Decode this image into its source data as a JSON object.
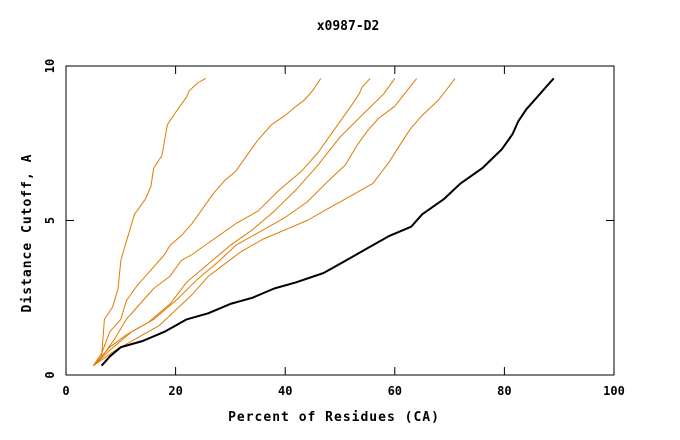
{
  "chart_data": {
    "type": "line",
    "title": "x0987-D2",
    "xlabel": "Percent of Residues (CA)",
    "ylabel": "Distance Cutoff, A",
    "xlim": [
      0,
      100
    ],
    "ylim": [
      0,
      10
    ],
    "xticks": [
      0,
      20,
      40,
      60,
      80,
      100
    ],
    "yticks": [
      0,
      5,
      10
    ],
    "grid": false,
    "legend": "none",
    "colors": {
      "highlight": "#000000",
      "others": "#e07b00",
      "axes": "#000000"
    },
    "series": [
      {
        "highlight": false,
        "x": [
          5.0,
          6.5,
          7.0,
          8.5,
          9.5,
          10.0,
          10.8,
          11.5,
          12.5,
          14.5,
          15.5,
          16.0,
          17.5,
          18.0,
          18.5,
          20.0,
          22.0,
          22.5,
          24.0,
          25.5
        ],
        "y": [
          0.3,
          0.6,
          1.8,
          2.2,
          2.8,
          3.7,
          4.2,
          4.6,
          5.2,
          5.7,
          6.1,
          6.7,
          7.1,
          7.6,
          8.1,
          8.5,
          9.0,
          9.2,
          9.45,
          9.6
        ]
      },
      {
        "highlight": false,
        "x": [
          5.0,
          6.5,
          8.0,
          10.0,
          11.0,
          13.0,
          16.0,
          18.0,
          19.0,
          21.0,
          23.0,
          25.0,
          27.0,
          29.0,
          31.0,
          33.0,
          35.0,
          36.0,
          37.5,
          40.0,
          42.0,
          43.5,
          45.0,
          46.5
        ],
        "y": [
          0.3,
          0.7,
          1.4,
          1.8,
          2.4,
          2.9,
          3.5,
          3.9,
          4.2,
          4.5,
          4.9,
          5.4,
          5.9,
          6.3,
          6.6,
          7.1,
          7.6,
          7.8,
          8.1,
          8.4,
          8.7,
          8.9,
          9.2,
          9.6
        ]
      },
      {
        "highlight": false,
        "x": [
          5.0,
          7.0,
          9.0,
          11.0,
          13.0,
          16.0,
          19.0,
          21.0,
          23.0,
          27.0,
          31.0,
          35.0,
          39.0,
          43.0,
          46.0,
          48.0,
          50.0,
          52.0,
          53.5,
          54.0,
          55.5
        ],
        "y": [
          0.3,
          0.7,
          1.2,
          1.8,
          2.2,
          2.8,
          3.2,
          3.7,
          3.9,
          4.4,
          4.9,
          5.3,
          6.0,
          6.6,
          7.2,
          7.7,
          8.2,
          8.7,
          9.1,
          9.3,
          9.6
        ]
      },
      {
        "highlight": false,
        "x": [
          5.0,
          8.0,
          11.0,
          15.0,
          19.0,
          22.0,
          26.0,
          30.0,
          34.0,
          38.0,
          42.0,
          46.0,
          50.0,
          54.0,
          58.0,
          60.0
        ],
        "y": [
          0.3,
          0.9,
          1.3,
          1.7,
          2.3,
          3.0,
          3.6,
          4.2,
          4.7,
          5.3,
          6.0,
          6.8,
          7.7,
          8.4,
          9.1,
          9.6
        ]
      },
      {
        "highlight": false,
        "x": [
          5.0,
          8.0,
          12.0,
          16.0,
          20.0,
          24.0,
          28.0,
          31.0,
          35.0,
          40.0,
          44.0,
          48.0,
          51.0,
          53.0,
          55.0,
          57.0,
          60.0,
          64.0
        ],
        "y": [
          0.3,
          0.8,
          1.4,
          1.8,
          2.4,
          3.1,
          3.7,
          4.2,
          4.6,
          5.1,
          5.6,
          6.3,
          6.8,
          7.4,
          7.9,
          8.3,
          8.7,
          9.6
        ]
      },
      {
        "highlight": false,
        "x": [
          5.0,
          9.0,
          13.0,
          17.0,
          20.0,
          23.0,
          26.0,
          29.0,
          32.0,
          36.0,
          40.0,
          44.0,
          48.0,
          52.0,
          56.0,
          59.0,
          61.5,
          63.0,
          65.0,
          68.0,
          71.0
        ],
        "y": [
          0.3,
          0.8,
          1.2,
          1.6,
          2.1,
          2.6,
          3.2,
          3.6,
          4.0,
          4.4,
          4.7,
          5.0,
          5.4,
          5.8,
          6.2,
          6.9,
          7.6,
          8.0,
          8.4,
          8.9,
          9.6
        ]
      },
      {
        "highlight": true,
        "x": [
          6.5,
          8.0,
          10.0,
          14.0,
          18.0,
          22.0,
          26.0,
          30.0,
          34.0,
          38.0,
          42.0,
          47.0,
          51.0,
          55.0,
          59.0,
          63.0,
          65.0,
          69.0,
          72.0,
          76.0,
          79.5,
          81.5,
          82.5,
          84.0,
          86.0,
          88.0,
          89.0
        ],
        "y": [
          0.3,
          0.6,
          0.9,
          1.1,
          1.4,
          1.8,
          2.0,
          2.3,
          2.5,
          2.8,
          3.0,
          3.3,
          3.7,
          4.1,
          4.5,
          4.8,
          5.2,
          5.7,
          6.2,
          6.7,
          7.3,
          7.8,
          8.2,
          8.6,
          9.0,
          9.4,
          9.6
        ]
      }
    ]
  }
}
